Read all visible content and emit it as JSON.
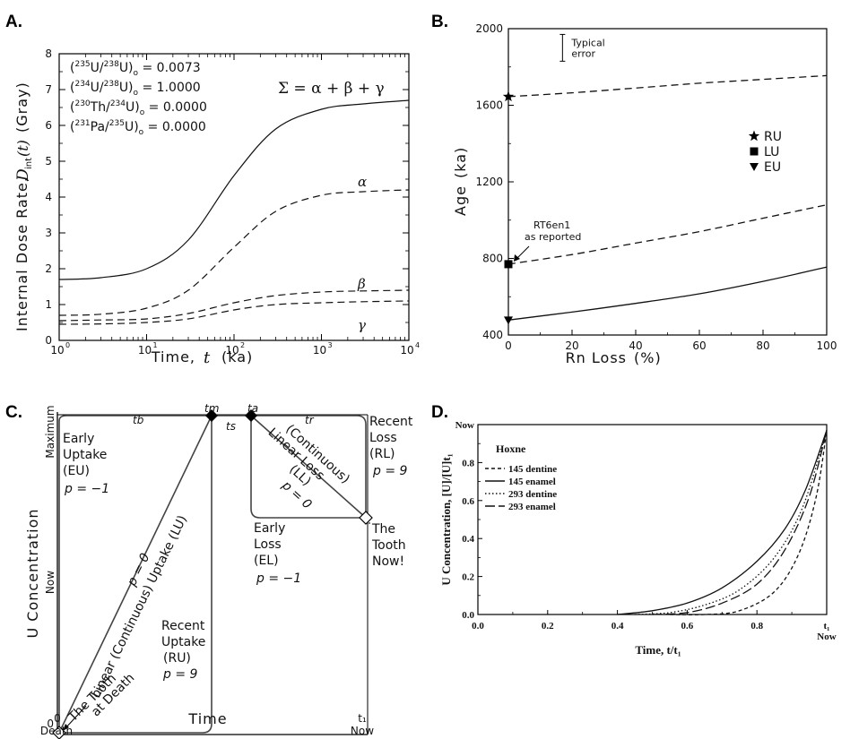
{
  "panel_labels": {
    "a": "A.",
    "b": "B.",
    "c": "C.",
    "d": "D."
  },
  "chart_data": [
    {
      "id": "A",
      "type": "line",
      "x_scale": "log",
      "xlabel": "Time,",
      "xlabel_var": "t",
      "xlabel_unit": "(ka)",
      "ylabel": "Internal Dose Rate,",
      "ylabel_var": "D",
      "ylabel_sub": "int",
      "ylabel_arg": "(t)",
      "ylabel_unit": "(Gray)",
      "xlim": [
        1,
        10000
      ],
      "ylim": [
        0,
        8
      ],
      "x_ticks": [
        1,
        10,
        100,
        1000,
        10000
      ],
      "x_tick_labels": [
        {
          "base": "10",
          "exp": "0"
        },
        {
          "base": "10",
          "exp": "1"
        },
        {
          "base": "10",
          "exp": "2"
        },
        {
          "base": "10",
          "exp": "3"
        },
        {
          "base": "10",
          "exp": "4"
        }
      ],
      "y_ticks": [
        0,
        1,
        2,
        3,
        4,
        5,
        6,
        7,
        8
      ],
      "ratios": [
        {
          "num_mass": "235",
          "num_el": "U",
          "den_mass": "238",
          "den_el": "U",
          "value": "0.0073"
        },
        {
          "num_mass": "234",
          "num_el": "U",
          "den_mass": "238",
          "den_el": "U",
          "value": "1.0000"
        },
        {
          "num_mass": "230",
          "num_el": "Th",
          "den_mass": "234",
          "den_el": "U",
          "value": "0.0000"
        },
        {
          "num_mass": "231",
          "num_el": "Pa",
          "den_mass": "235",
          "den_el": "U",
          "value": "0.0000"
        }
      ],
      "ratio_subscript": "o",
      "equation": "Σ = α + β + γ",
      "series": [
        {
          "name": "Σ",
          "style": "solid",
          "x": [
            1,
            3,
            10,
            30,
            100,
            300,
            1000,
            3000,
            10000
          ],
          "y": [
            1.7,
            1.75,
            2.0,
            2.8,
            4.6,
            5.9,
            6.45,
            6.6,
            6.7
          ]
        },
        {
          "name": "α",
          "style": "dashed",
          "x": [
            1,
            3,
            10,
            30,
            100,
            300,
            1000,
            3000,
            10000
          ],
          "y": [
            0.7,
            0.73,
            0.9,
            1.4,
            2.6,
            3.6,
            4.05,
            4.15,
            4.2
          ]
        },
        {
          "name": "β",
          "style": "dashed",
          "x": [
            1,
            3,
            10,
            30,
            100,
            300,
            1000,
            3000,
            10000
          ],
          "y": [
            0.55,
            0.57,
            0.6,
            0.75,
            1.05,
            1.25,
            1.35,
            1.38,
            1.4
          ]
        },
        {
          "name": "γ",
          "style": "dashed",
          "x": [
            1,
            3,
            10,
            30,
            100,
            300,
            1000,
            3000,
            10000
          ],
          "y": [
            0.45,
            0.46,
            0.5,
            0.6,
            0.85,
            1.0,
            1.05,
            1.08,
            1.1
          ]
        }
      ],
      "series_labels": [
        {
          "name": "α",
          "x": 3000,
          "y": 4.5
        },
        {
          "name": "β",
          "x": 3000,
          "y": 1.65
        },
        {
          "name": "γ",
          "x": 3000,
          "y": 0.5
        }
      ]
    },
    {
      "id": "B",
      "type": "line",
      "xlabel": "Rn Loss",
      "xlabel_unit": "(%)",
      "ylabel": "Age",
      "ylabel_unit": "(ka)",
      "xlim": [
        0,
        100
      ],
      "ylim": [
        400,
        2000
      ],
      "x_ticks": [
        0,
        20,
        40,
        60,
        80,
        100
      ],
      "y_ticks": [
        400,
        800,
        1200,
        1600,
        2000
      ],
      "series": [
        {
          "name": "RU",
          "style": "dashed",
          "x": [
            0,
            20,
            40,
            60,
            80,
            100
          ],
          "y": [
            1645,
            1665,
            1690,
            1715,
            1735,
            1755
          ]
        },
        {
          "name": "LU",
          "style": "dashed",
          "x": [
            0,
            20,
            40,
            60,
            80,
            100
          ],
          "y": [
            770,
            820,
            880,
            940,
            1010,
            1080
          ]
        },
        {
          "name": "EU",
          "style": "solid",
          "x": [
            0,
            20,
            40,
            60,
            80,
            100
          ],
          "y": [
            478,
            520,
            565,
            615,
            680,
            755
          ]
        }
      ],
      "legend": [
        {
          "marker": "star",
          "label": "RU"
        },
        {
          "marker": "square",
          "label": "LU"
        },
        {
          "marker": "triangle-down",
          "label": "EU"
        }
      ],
      "legend_position": "right",
      "annotations": {
        "error_text": [
          "Typical",
          "error"
        ],
        "error_bar_center": {
          "x": 17,
          "y": 1900
        },
        "error_bar_halfrange": 70,
        "reported_text": [
          "RT6en1",
          "as reported"
        ]
      }
    },
    {
      "id": "C",
      "type": "diagram",
      "xlabel": "Time",
      "ylabel": "U Concentration",
      "x_ticks": [
        {
          "label": "0",
          "sub": "Death"
        },
        {
          "label": "t₁",
          "sub": "Now"
        }
      ],
      "y_ticks": [
        {
          "label": "0"
        },
        {
          "label": "Now"
        },
        {
          "label": "Maximum"
        }
      ],
      "top_labels": {
        "tb": "tb",
        "tm": "tm",
        "ta": "ta",
        "tr": "tr",
        "ts": "ts"
      },
      "labels": {
        "eu": [
          "Early",
          "Uptake",
          "(EU)",
          "p = −1"
        ],
        "lu_main": "Linear (Continuous) Uptake (LU)",
        "lu_p": "p = 0",
        "ru": [
          "Recent",
          "Uptake",
          "(RU)",
          "p = 9"
        ],
        "tooth_death": [
          "The Tooth",
          "at Death"
        ],
        "rl": [
          "Recent",
          "Loss",
          "(RL)",
          "p = 9"
        ],
        "ll_main": [
          "(Continuous)",
          "Linear Loss"
        ],
        "ll_tag": "(LL)",
        "ll_p": "p = 0",
        "el": [
          "Early",
          "Loss",
          "(EL)",
          "p = −1"
        ],
        "tooth_now": [
          "The",
          "Tooth",
          "Now!"
        ]
      }
    },
    {
      "id": "D",
      "type": "line",
      "xlabel": "Time, t/t₁",
      "ylabel": "U Concentration, [U]/[U]t₁",
      "xlim": [
        0,
        1
      ],
      "ylim": [
        0,
        1
      ],
      "x_ticks": [
        0.0,
        0.2,
        0.4,
        0.6,
        0.8,
        1.0
      ],
      "x_tick_labels": [
        "0.0",
        "0.2",
        "0.4",
        "0.6",
        "0.8",
        "t₁"
      ],
      "x_tick_extra": "Now",
      "y_ticks": [
        0.0,
        0.2,
        0.4,
        0.6,
        0.8,
        1.0
      ],
      "y_tick_labels": [
        "0.0",
        "0.2",
        "0.4",
        "0.6",
        "0.8",
        "Now"
      ],
      "legend_title": "Hoxne",
      "legend_position": "top-left",
      "series": [
        {
          "name": "145 dentine",
          "style": "short-dash",
          "x": [
            0.55,
            0.65,
            0.75,
            0.85,
            0.92,
            0.97,
            1.0
          ],
          "y": [
            0.0,
            0.0,
            0.02,
            0.12,
            0.32,
            0.62,
            0.97
          ]
        },
        {
          "name": "145 enamel",
          "style": "solid",
          "x": [
            0.4,
            0.5,
            0.6,
            0.7,
            0.8,
            0.88,
            0.94,
            1.0
          ],
          "y": [
            0.0,
            0.02,
            0.06,
            0.14,
            0.28,
            0.45,
            0.66,
            0.97
          ]
        },
        {
          "name": "293 dentine",
          "style": "dotted",
          "x": [
            0.45,
            0.55,
            0.65,
            0.75,
            0.85,
            0.93,
            1.0
          ],
          "y": [
            0.0,
            0.01,
            0.05,
            0.13,
            0.3,
            0.56,
            0.97
          ]
        },
        {
          "name": "293 enamel",
          "style": "long-dash",
          "x": [
            0.5,
            0.6,
            0.7,
            0.8,
            0.88,
            0.95,
            1.0
          ],
          "y": [
            0.0,
            0.01,
            0.06,
            0.16,
            0.34,
            0.62,
            0.97
          ]
        }
      ]
    }
  ]
}
